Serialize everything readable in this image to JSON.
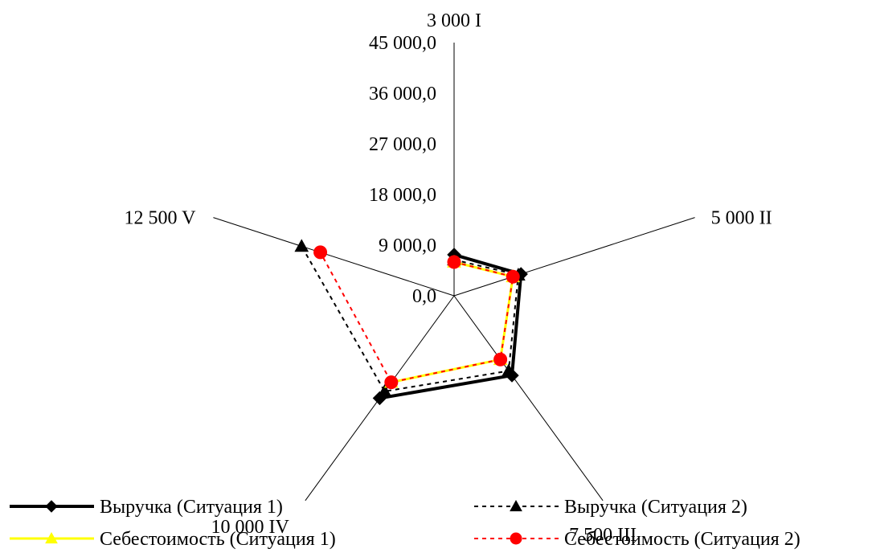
{
  "chart_data": {
    "type": "radar",
    "title": "",
    "categories": [
      "3 000 I",
      "5 000 II",
      "7 500 III",
      "10 000 IV",
      "12 500 V"
    ],
    "rlim": [
      0,
      45000
    ],
    "tick_labels": [
      "0,0",
      "9 000,0",
      "18 000,0",
      "27 000,0",
      "36 000,0",
      "45 000,0"
    ],
    "grid": false,
    "legend_position": "bottom",
    "series": [
      {
        "name": "Выручка (Ситуация 1)",
        "color": "#000000",
        "style": "solid",
        "marker": "diamond",
        "values": [
          7300,
          12500,
          17500,
          22500,
          null
        ]
      },
      {
        "name": "Выручка (Ситуация 2)",
        "color": "#000000",
        "style": "dotted",
        "marker": "triangle",
        "values": [
          6400,
          12000,
          16500,
          21000,
          28500
        ]
      },
      {
        "name": "Себестоимость (Ситуация 1)",
        "color": "#FFFF00",
        "style": "solid",
        "marker": "triangle",
        "values": [
          6000,
          11000,
          14000,
          19000,
          null
        ]
      },
      {
        "name": "Себестоимость (Ситуация 2)",
        "color": "#FF0000",
        "style": "dotted",
        "marker": "circle",
        "values": [
          6000,
          11000,
          14000,
          19000,
          25000
        ]
      }
    ]
  }
}
